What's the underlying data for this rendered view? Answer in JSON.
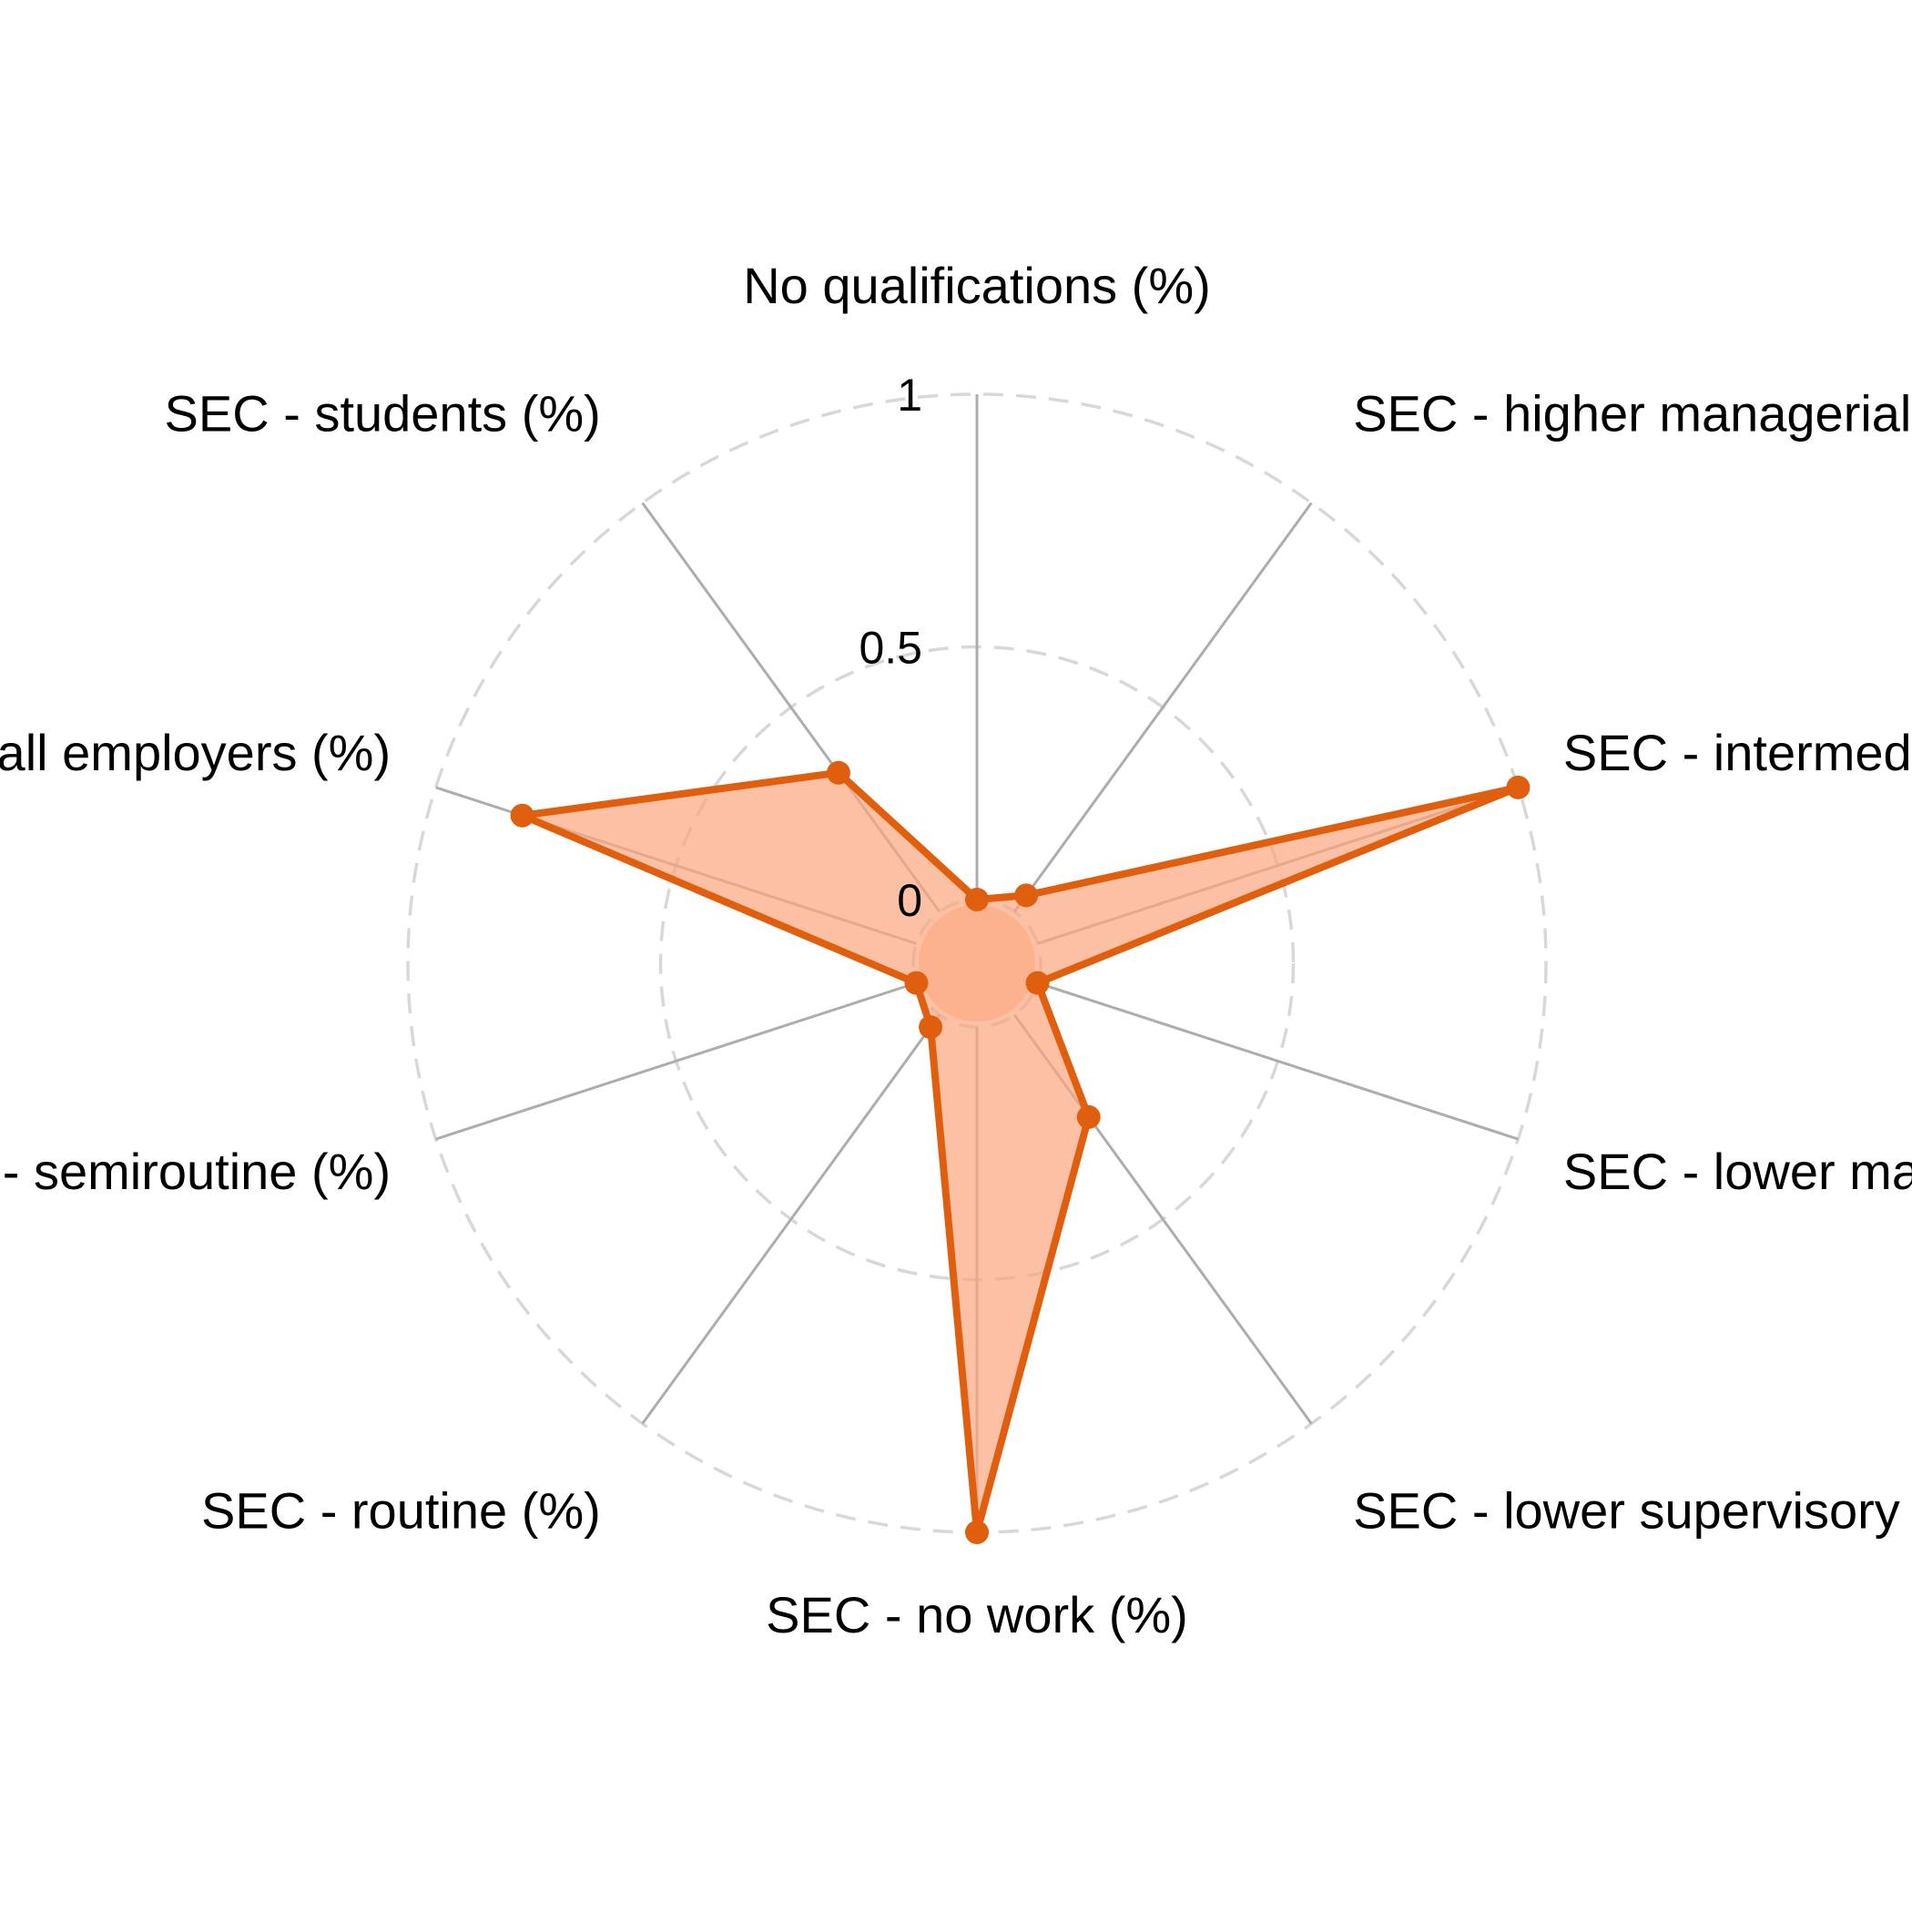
{
  "chart_data": {
    "type": "radar",
    "axes": [
      "No qualifications (%)",
      "SEC - higher managerial (%)",
      "SEC - intermediate (%)",
      "SEC - lower managerial (%)",
      "SEC - lower supervisory (%)",
      "SEC - no work (%)",
      "SEC - routine (%)",
      "SEC - semiroutine (%)",
      "SEC - small employers (%)",
      "SEC - students (%)"
    ],
    "series": [
      {
        "name": "",
        "values": [
          0.0,
          0.04,
          1.0,
          0.0,
          0.25,
          1.0,
          0.03,
          0.0,
          0.82,
          0.34
        ]
      }
    ],
    "rlim": [
      -0.2,
      1.0
    ],
    "ticks": [
      "0",
      "0.5",
      "1"
    ],
    "tick_values": [
      0,
      0.5,
      1
    ],
    "colors": {
      "line": "#E05F0E",
      "fill": "#FBA57E",
      "spoke": "#ADADAD",
      "gridline": "#D8D8D8"
    },
    "grid": true,
    "legend": "none"
  }
}
